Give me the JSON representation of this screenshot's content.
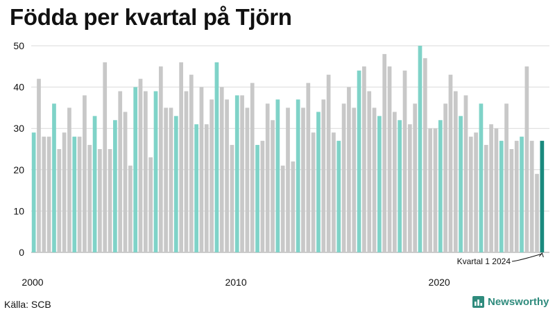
{
  "title": "Födda per kvartal på Tjörn",
  "source": "Källa: SCB",
  "brand": {
    "name": "Newsworthy",
    "icon": "bar-chart-logo-icon"
  },
  "colors": {
    "bar_default": "#c8c8c8",
    "bar_q1": "#7fd3c8",
    "bar_latest": "#1a8a7e",
    "gridline": "#d9d9d9",
    "text": "#111111",
    "brand": "#2f8b7d"
  },
  "chart_data": {
    "type": "bar",
    "x_tick_labels": [
      "2000",
      "2010",
      "2020"
    ],
    "y_tick_labels": [
      "0",
      "10",
      "20",
      "30",
      "40",
      "50"
    ],
    "ylim": [
      0,
      50
    ],
    "grid": true,
    "annotation": "Kvartal 1 2024",
    "series": [
      {
        "values": [
          29,
          42,
          28,
          28,
          36,
          25,
          29,
          35,
          28,
          28,
          38,
          26,
          33,
          25,
          46,
          25,
          32,
          39,
          34,
          21,
          40,
          42,
          39,
          23,
          39,
          45,
          35,
          35,
          33,
          46,
          39,
          43,
          31,
          40,
          31,
          37,
          46,
          40,
          37,
          26,
          38,
          38,
          35,
          41,
          26,
          27,
          36,
          32,
          37,
          21,
          35,
          22,
          37,
          35,
          41,
          29,
          34,
          37,
          43,
          29,
          27,
          36,
          40,
          35,
          44,
          45,
          39,
          35,
          33,
          48,
          45,
          34,
          32,
          44,
          31,
          36,
          50,
          47,
          30,
          30,
          32,
          36,
          43,
          39,
          33,
          38,
          28,
          29,
          36,
          26,
          31,
          30,
          27,
          36,
          25,
          27,
          28,
          45,
          27,
          19,
          27
        ]
      }
    ]
  }
}
